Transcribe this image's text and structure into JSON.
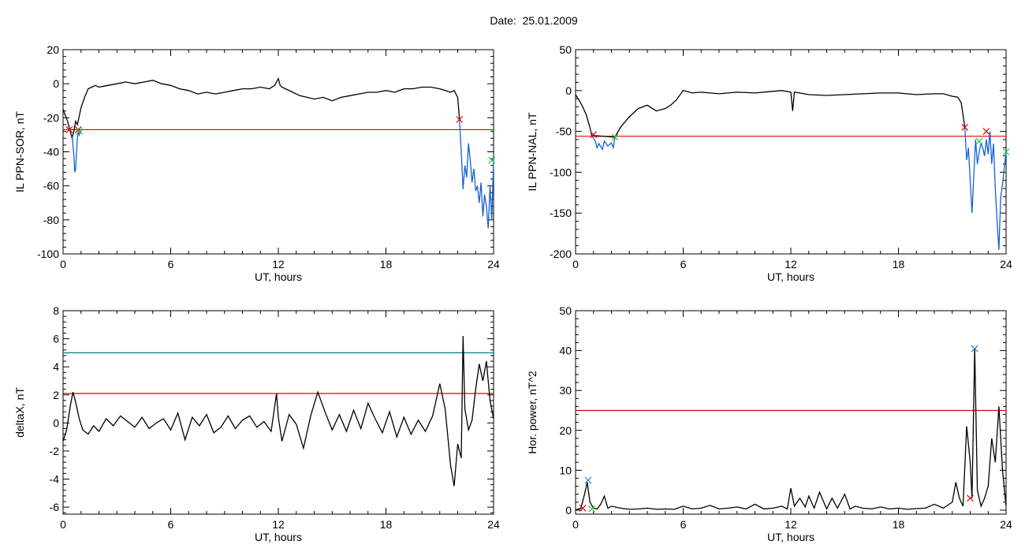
{
  "page_title": "Date:  25.01.2009",
  "chart_data": [
    {
      "type": "line",
      "ylabel": "IL PPN-SOR, nT",
      "xlabel": "UT, hours",
      "xlim": [
        0,
        24
      ],
      "ylim": [
        -100,
        20
      ],
      "xticks": [
        "0",
        "6",
        "12",
        "18",
        "24"
      ],
      "yticks": [
        "20",
        "0",
        "-20",
        "-40",
        "-60",
        "-80",
        "-100"
      ],
      "threshold_lines": [
        {
          "y": -27,
          "color": "#e00000"
        }
      ],
      "series": [
        {
          "color": "#000000",
          "x": [
            0,
            0.1,
            0.25,
            0.4,
            0.5,
            0.6,
            0.7,
            0.8,
            1.0,
            1.2,
            1.4,
            1.6,
            1.8,
            2.0,
            2.5,
            3.0,
            3.5,
            4.0,
            4.5,
            5.0,
            5.5,
            6.0,
            6.5,
            7.0,
            7.5,
            8.0,
            8.5,
            9.0,
            9.5,
            10.0,
            10.5,
            11.0,
            11.5,
            11.8,
            12.0,
            12.1,
            12.2,
            12.4,
            12.8,
            13.2,
            13.6,
            14.0,
            14.5,
            15.0,
            15.5,
            16.0,
            16.5,
            17.0,
            17.5,
            18.0,
            18.5,
            19.0,
            19.5,
            20.0,
            20.5,
            21.0,
            21.3,
            21.6,
            21.8,
            22.0,
            22.1
          ],
          "y": [
            -15,
            -18,
            -22,
            -28,
            -32,
            -28,
            -22,
            -24,
            -14,
            -8,
            -3,
            -2,
            -1,
            -2,
            -1,
            0,
            1,
            0,
            1,
            2,
            0,
            -1,
            -3,
            -4,
            -6,
            -5,
            -6,
            -5,
            -4,
            -3,
            -3,
            -2,
            -3,
            -1,
            3,
            -1,
            -2,
            -3,
            -5,
            -7,
            -8,
            -9,
            -8,
            -10,
            -8,
            -7,
            -6,
            -5,
            -5,
            -4,
            -5,
            -3,
            -3,
            -2,
            -2,
            -3,
            -4,
            -5,
            -4,
            -8,
            -21
          ]
        },
        {
          "color": "#1560d8",
          "x": [
            0.5,
            0.6,
            0.65,
            0.7,
            0.75,
            0.8,
            0.85,
            0.9,
            0.95,
            1.0,
            22.1,
            22.2,
            22.3,
            22.4,
            22.5,
            22.6,
            22.7,
            22.8,
            22.9,
            23.0,
            23.1,
            23.2,
            23.3,
            23.4,
            23.5,
            23.6,
            23.7,
            23.8,
            23.9,
            24.0
          ],
          "y": [
            -30,
            -42,
            -52,
            -50,
            -40,
            -32,
            -28,
            -30,
            -28,
            -27,
            -21,
            -40,
            -62,
            -48,
            -55,
            -35,
            -45,
            -58,
            -50,
            -63,
            -60,
            -70,
            -58,
            -78,
            -65,
            -72,
            -85,
            -60,
            -80,
            -45
          ]
        }
      ],
      "markers": [
        {
          "x": 0.35,
          "y": -27,
          "color": "#e00000"
        },
        {
          "x": 0.85,
          "y": -27,
          "color": "#e00000"
        },
        {
          "x": 22.1,
          "y": -21,
          "color": "#e00000"
        },
        {
          "x": 0.9,
          "y": -28,
          "color": "#2ecc40"
        },
        {
          "x": 23.9,
          "y": -45,
          "color": "#2ecc40"
        }
      ]
    },
    {
      "type": "line",
      "ylabel": "IL PPN-NAL, nT",
      "xlabel": "UT, hours",
      "xlim": [
        0,
        24
      ],
      "ylim": [
        -200,
        50
      ],
      "xticks": [
        "0",
        "6",
        "12",
        "18",
        "24"
      ],
      "yticks": [
        "50",
        "0",
        "-50",
        "-100",
        "-150",
        "-200"
      ],
      "threshold_lines": [
        {
          "y": -56,
          "color": "#e00000"
        }
      ],
      "series": [
        {
          "color": "#000000",
          "x": [
            0,
            0.2,
            0.4,
            0.6,
            0.8,
            0.9,
            2.2,
            2.5,
            3.0,
            3.5,
            4.0,
            4.5,
            5.0,
            5.3,
            5.6,
            6.0,
            6.5,
            7.0,
            8.0,
            9.0,
            10.0,
            11.0,
            11.5,
            12.0,
            12.1,
            12.2,
            12.5,
            13.0,
            14.0,
            15.0,
            16.0,
            17.0,
            18.0,
            19.0,
            20.0,
            20.5,
            21.0,
            21.3,
            21.5,
            21.7
          ],
          "y": [
            -5,
            -12,
            -20,
            -30,
            -45,
            -55,
            -57,
            -45,
            -32,
            -22,
            -18,
            -25,
            -22,
            -18,
            -12,
            0,
            -3,
            -2,
            -4,
            -2,
            -3,
            -1,
            0,
            -2,
            -25,
            -2,
            -3,
            -5,
            -6,
            -5,
            -4,
            -3,
            -3,
            -5,
            -4,
            -4,
            -7,
            -8,
            -15,
            -45
          ]
        },
        {
          "color": "#1560d8",
          "x": [
            0.9,
            1.1,
            1.2,
            1.3,
            1.5,
            1.6,
            1.8,
            2.0,
            2.1,
            2.2,
            21.7,
            21.8,
            21.9,
            22.0,
            22.1,
            22.2,
            22.3,
            22.4,
            22.5,
            22.6,
            22.7,
            22.8,
            22.9,
            23.0,
            23.1,
            23.2,
            23.3,
            23.4,
            23.5,
            23.6,
            23.7,
            23.8,
            23.9,
            24.0
          ],
          "y": [
            -55,
            -62,
            -70,
            -65,
            -72,
            -62,
            -68,
            -64,
            -70,
            -57,
            -45,
            -85,
            -70,
            -110,
            -150,
            -105,
            -60,
            -90,
            -75,
            -65,
            -70,
            -80,
            -60,
            -78,
            -50,
            -90,
            -65,
            -120,
            -160,
            -195,
            -130,
            -115,
            -95,
            -75
          ]
        }
      ],
      "markers": [
        {
          "x": 1.0,
          "y": -54,
          "color": "#e00000"
        },
        {
          "x": 21.7,
          "y": -45,
          "color": "#e00000"
        },
        {
          "x": 22.9,
          "y": -50,
          "color": "#e00000"
        },
        {
          "x": 2.2,
          "y": -57,
          "color": "#2ecc40"
        },
        {
          "x": 22.5,
          "y": -62,
          "color": "#2ecc40"
        },
        {
          "x": 24.0,
          "y": -75,
          "color": "#2ecc40"
        }
      ]
    },
    {
      "type": "line",
      "ylabel": "deltaX, nT",
      "xlabel": "UT, hours",
      "xlim": [
        0,
        24
      ],
      "ylim": [
        -6.5,
        8
      ],
      "xticks": [
        "0",
        "6",
        "12",
        "18",
        "24"
      ],
      "yticks": [
        "8",
        "6",
        "4",
        "2",
        "0",
        "-2",
        "-4",
        "-6"
      ],
      "threshold_lines": [
        {
          "y": 5.0,
          "color": "#008080"
        },
        {
          "y": 2.1,
          "color": "#e00000"
        }
      ],
      "series": [
        {
          "color": "#000000",
          "x": [
            0,
            0.2,
            0.4,
            0.55,
            0.7,
            0.9,
            1.1,
            1.4,
            1.7,
            2.0,
            2.4,
            2.8,
            3.2,
            3.6,
            4.0,
            4.4,
            4.8,
            5.2,
            5.6,
            6.0,
            6.4,
            6.8,
            7.2,
            7.6,
            8.0,
            8.4,
            8.8,
            9.2,
            9.6,
            10.0,
            10.4,
            10.8,
            11.2,
            11.6,
            11.9,
            12.0,
            12.2,
            12.6,
            13.0,
            13.4,
            13.8,
            14.2,
            14.6,
            15.0,
            15.4,
            15.8,
            16.2,
            16.6,
            17.0,
            17.4,
            17.8,
            18.2,
            18.6,
            19.0,
            19.4,
            19.8,
            20.2,
            20.6,
            21.0,
            21.3,
            21.6,
            21.8,
            22.0,
            22.2,
            22.3,
            22.4,
            22.6,
            22.8,
            23.0,
            23.2,
            23.4,
            23.6,
            23.8,
            24.0
          ],
          "y": [
            -1.3,
            -0.5,
            1.2,
            2.2,
            1.5,
            0.3,
            -0.5,
            -0.8,
            -0.2,
            -0.6,
            0.3,
            -0.2,
            0.5,
            0.1,
            -0.3,
            0.4,
            -0.4,
            0.0,
            0.3,
            -0.5,
            0.7,
            -1.2,
            0.4,
            -0.2,
            0.6,
            -0.7,
            -0.3,
            0.5,
            -0.4,
            0.2,
            0.5,
            -0.3,
            0.1,
            -0.6,
            2.1,
            0.4,
            -1.3,
            0.6,
            -0.1,
            -1.8,
            0.5,
            2.2,
            0.8,
            -0.5,
            0.6,
            -0.6,
            0.9,
            -0.4,
            1.4,
            0.3,
            -0.7,
            0.8,
            -1.0,
            0.4,
            -0.8,
            0.2,
            -0.6,
            0.5,
            2.8,
            1.0,
            -3.0,
            -4.5,
            -1.5,
            -2.5,
            6.2,
            1.0,
            -0.5,
            0.2,
            2.4,
            4.2,
            3.0,
            4.4,
            1.6,
            0.3
          ]
        }
      ],
      "markers": []
    },
    {
      "type": "line",
      "ylabel": "Hor. power, nT^2",
      "xlabel": "UT, hours",
      "xlim": [
        0,
        24
      ],
      "ylim": [
        -1,
        50
      ],
      "xticks": [
        "0",
        "6",
        "12",
        "18",
        "24"
      ],
      "yticks": [
        "50",
        "40",
        "30",
        "20",
        "10",
        "0"
      ],
      "threshold_lines": [
        {
          "y": 25,
          "color": "#e00000"
        }
      ],
      "series": [
        {
          "color": "#000000",
          "x": [
            0,
            0.3,
            0.5,
            0.65,
            0.8,
            1.0,
            1.2,
            1.4,
            1.6,
            1.8,
            2.0,
            2.5,
            3.0,
            3.5,
            4.0,
            4.5,
            5.0,
            5.5,
            6.0,
            6.5,
            7.0,
            7.5,
            8.0,
            8.5,
            9.0,
            9.5,
            10.0,
            10.5,
            11.0,
            11.5,
            11.8,
            12.0,
            12.2,
            12.5,
            12.8,
            13.0,
            13.3,
            13.6,
            14.0,
            14.3,
            14.6,
            15.0,
            15.3,
            15.6,
            16.0,
            16.5,
            17.0,
            17.5,
            18.0,
            18.5,
            19.0,
            19.5,
            20.0,
            20.5,
            21.0,
            21.2,
            21.4,
            21.6,
            21.8,
            22.0,
            22.1,
            22.25,
            22.4,
            22.6,
            22.8,
            23.0,
            23.2,
            23.4,
            23.6,
            23.8,
            24.0
          ],
          "y": [
            0,
            0.5,
            4,
            7,
            2,
            0.5,
            0.3,
            1.5,
            3.5,
            0.5,
            1.0,
            0.5,
            0.2,
            0.3,
            0.5,
            0.2,
            0.3,
            0.2,
            1.0,
            0.3,
            0.5,
            1.2,
            0.3,
            0.5,
            0.8,
            0.3,
            1.5,
            0.3,
            0.5,
            1.0,
            0.3,
            5.5,
            1.0,
            3.0,
            0.8,
            3.5,
            0.5,
            4.5,
            0.3,
            3.0,
            0.5,
            4.0,
            0.3,
            1.0,
            0.5,
            0.3,
            0.8,
            0.3,
            0.5,
            0.2,
            0.4,
            0.5,
            1.5,
            0.5,
            2.0,
            7.0,
            3.0,
            1.0,
            21.0,
            12.0,
            3.0,
            40.5,
            5.0,
            1.0,
            3.0,
            6.0,
            18.0,
            12.0,
            26.0,
            10.0,
            1.0
          ]
        }
      ],
      "markers": [
        {
          "x": 0.7,
          "y": 7.5,
          "color": "#1e7fd0"
        },
        {
          "x": 22.25,
          "y": 40.5,
          "color": "#1e7fd0"
        },
        {
          "x": 0.4,
          "y": 0.5,
          "color": "#e00000"
        },
        {
          "x": 22.0,
          "y": 3.0,
          "color": "#e00000"
        },
        {
          "x": 0.9,
          "y": 0.3,
          "color": "#2ecc40"
        }
      ]
    }
  ]
}
